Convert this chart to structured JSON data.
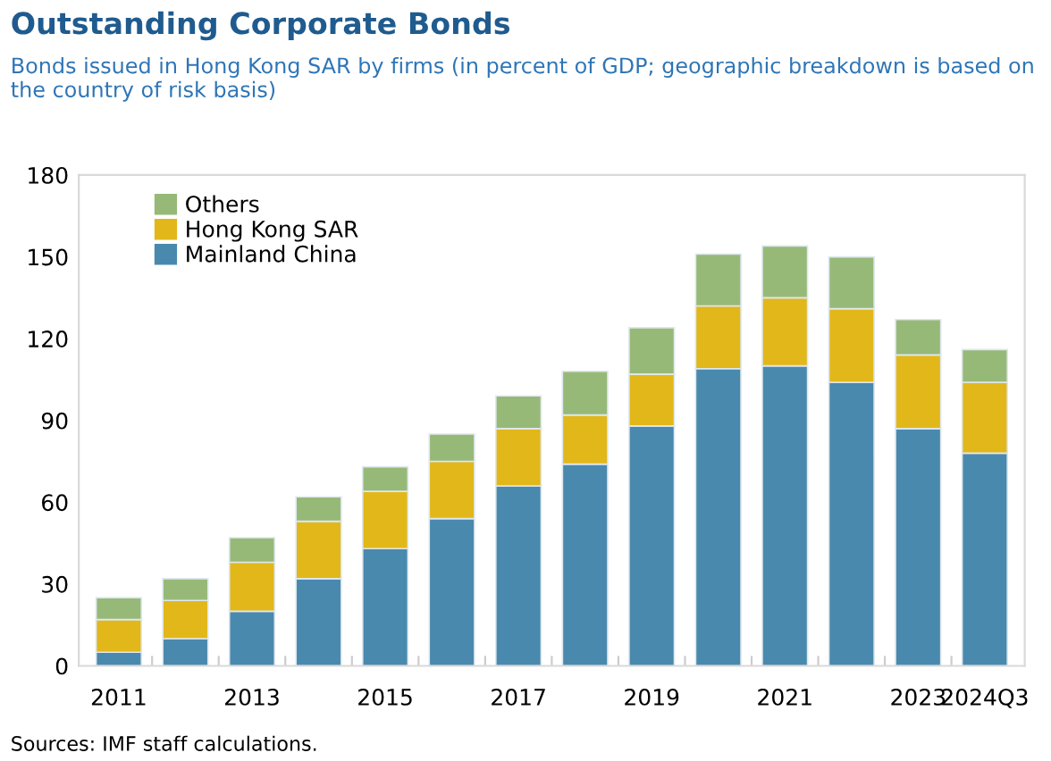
{
  "chart_data": {
    "type": "bar",
    "stacked": true,
    "title": "Outstanding Corporate Bonds",
    "subtitle": "Bonds issued in Hong Kong SAR by firms (in percent of GDP; geographic breakdown is based on the country of risk basis)",
    "categories": [
      "2011",
      null,
      "2013",
      null,
      "2015",
      null,
      "2017",
      null,
      "2019",
      null,
      "2021",
      null,
      "2023",
      "2024Q3"
    ],
    "series": [
      {
        "name": "Mainland China",
        "color": "#4a89ae",
        "values": [
          5,
          10,
          20,
          32,
          43,
          54,
          66,
          74,
          88,
          109,
          110,
          104,
          87,
          78
        ]
      },
      {
        "name": "Hong Kong SAR",
        "color": "#e2b71a",
        "values": [
          12,
          14,
          18,
          21,
          21,
          21,
          21,
          18,
          19,
          23,
          25,
          27,
          27,
          26
        ]
      },
      {
        "name": "Others",
        "color": "#97b978",
        "values": [
          8,
          8,
          9,
          9,
          9,
          10,
          12,
          16,
          17,
          19,
          19,
          19,
          13,
          12
        ]
      }
    ],
    "ylim": [
      0,
      180
    ],
    "yticks": [
      0,
      30,
      60,
      90,
      120,
      150,
      180
    ],
    "grid": false,
    "legend": "top left",
    "annotations": [
      "Sources: IMF staff calculations."
    ]
  }
}
